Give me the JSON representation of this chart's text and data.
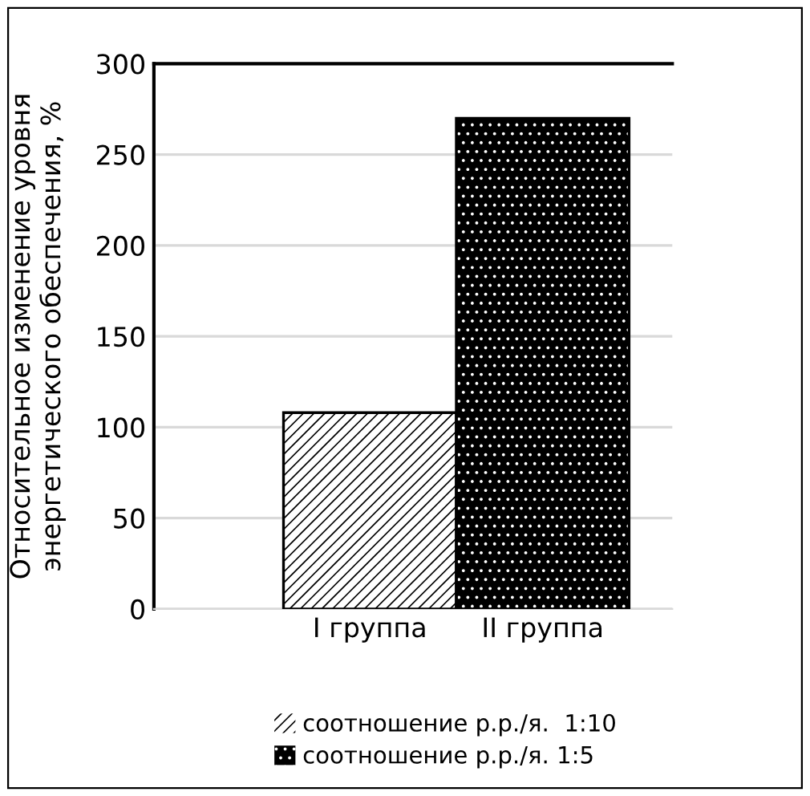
{
  "chart_data": {
    "type": "bar",
    "ylabel": "Относительное изменение уровня энергетического обеспечения, %",
    "categories": [
      "I группа",
      "II группа"
    ],
    "series": [
      {
        "name": "соотношение р.р./я.  1:10",
        "color": "#ffffff",
        "values": [
          108,
          null
        ]
      },
      {
        "name": "соотношение р.р./я. 1:5",
        "color": "#000000",
        "values": [
          null,
          270
        ]
      }
    ],
    "ylim": [
      0,
      300
    ],
    "yticks": [
      0,
      50,
      100,
      150,
      200,
      250,
      300
    ],
    "grid": "y",
    "legend": "bottom"
  }
}
